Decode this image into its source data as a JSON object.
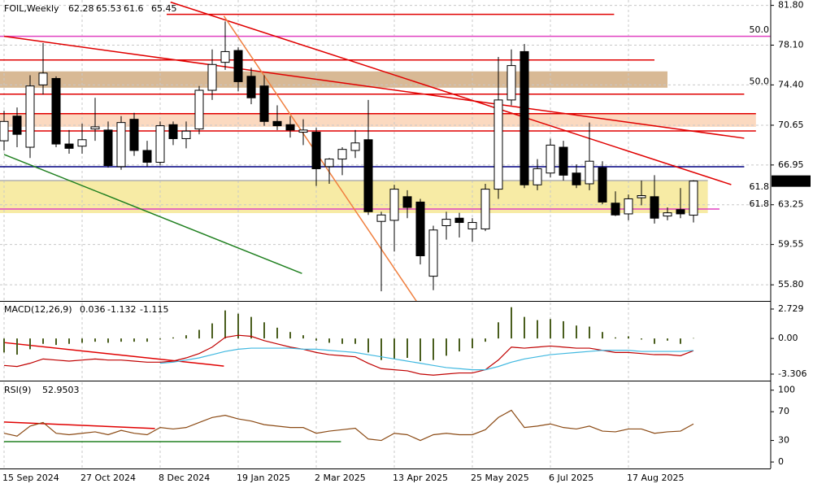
{
  "chart_data": [
    {
      "type": "candlestick",
      "title": "FOIL,Weekly",
      "categories": [
        "15 Sep 2024",
        null,
        null,
        null,
        null,
        null,
        "27 Oct 2024",
        null,
        null,
        null,
        null,
        null,
        "8 Dec 2024",
        null,
        null,
        null,
        null,
        null,
        "19 Jan 2025",
        null,
        null,
        null,
        null,
        null,
        "2 Mar 2025",
        null,
        null,
        null,
        null,
        null,
        "13 Apr 2025",
        null,
        null,
        null,
        null,
        null,
        "25 May 2025",
        null,
        null,
        null,
        null,
        null,
        "6 Jul 2025",
        null,
        null,
        null,
        null,
        null,
        "17 Aug 2025",
        null,
        null,
        null,
        null,
        null
      ],
      "open": [
        69.2,
        71.5,
        68.6,
        74.4,
        75.0,
        68.9,
        68.7,
        70.3,
        70.2,
        66.8,
        71.2,
        68.3,
        67.2,
        70.7,
        69.4,
        70.3,
        73.9,
        76.5,
        77.6,
        75.2,
        74.3,
        71.0,
        70.7,
        70.0,
        70.0,
        66.8,
        67.5,
        68.3,
        69.3,
        61.7,
        61.8,
        64.0,
        63.5,
        56.6,
        61.3,
        62.0,
        61.0,
        61.0,
        64.7,
        73.0,
        77.5,
        65.1,
        66.2,
        68.6,
        66.2,
        65.2,
        66.7,
        63.4,
        62.4,
        63.9,
        64.0,
        62.2,
        62.8,
        62.28
      ],
      "high": [
        72.0,
        72.3,
        75.3,
        78.3,
        75.2,
        70.2,
        70.8,
        73.2,
        71.0,
        71.5,
        71.8,
        69.2,
        71.0,
        71.0,
        71.0,
        74.3,
        77.7,
        80.3,
        77.9,
        76.0,
        75.3,
        72.5,
        71.5,
        71.2,
        70.4,
        67.6,
        68.6,
        70.2,
        73.0,
        62.6,
        65.1,
        64.6,
        63.8,
        61.3,
        62.6,
        62.5,
        62.0,
        65.2,
        77.0,
        77.7,
        78.2,
        67.5,
        69.4,
        69.2,
        67.0,
        70.9,
        67.3,
        64.5,
        64.2,
        65.5,
        66.0,
        63.0,
        64.8,
        65.53
      ],
      "low": [
        68.3,
        68.6,
        67.6,
        73.5,
        68.6,
        68.0,
        68.0,
        69.2,
        66.7,
        66.5,
        67.8,
        66.8,
        66.9,
        68.8,
        68.5,
        69.8,
        73.0,
        75.8,
        73.8,
        72.6,
        70.6,
        70.2,
        69.5,
        68.8,
        65.0,
        65.2,
        66.0,
        67.6,
        62.3,
        55.2,
        58.9,
        62.0,
        57.7,
        55.3,
        60.0,
        60.2,
        59.8,
        60.8,
        63.8,
        72.5,
        64.8,
        64.6,
        65.8,
        65.5,
        64.8,
        64.6,
        63.3,
        62.2,
        61.8,
        63.2,
        61.5,
        61.8,
        62.0,
        61.6
      ],
      "close": [
        71.0,
        69.8,
        74.3,
        75.5,
        68.9,
        68.5,
        69.3,
        70.5,
        66.9,
        70.9,
        68.3,
        67.2,
        70.6,
        69.4,
        70.1,
        73.9,
        76.3,
        77.5,
        74.7,
        73.2,
        71.0,
        70.6,
        70.2,
        70.2,
        66.6,
        67.5,
        68.4,
        69.0,
        62.6,
        62.3,
        64.7,
        63.0,
        58.5,
        60.9,
        61.9,
        61.6,
        61.6,
        64.7,
        73.0,
        76.2,
        65.1,
        66.6,
        68.8,
        66.0,
        65.1,
        67.3,
        63.5,
        62.3,
        63.8,
        64.1,
        62.0,
        62.5,
        62.4,
        65.45
      ],
      "up_color": "#ffffff",
      "down_color": "#000000",
      "ylim": [
        54.3,
        82.3
      ],
      "yticks": [
        {
          "value": 81.8,
          "label": "81.80"
        },
        {
          "value": 78.1,
          "label": "78.10"
        },
        {
          "value": 74.4,
          "label": "74.40"
        },
        70.65,
        66.95,
        63.25,
        59.55,
        {
          "value": 55.8,
          "label": "55.80"
        }
      ],
      "grid": true,
      "zones": [
        {
          "low": 74.14,
          "high": 75.66,
          "from": -1,
          "to": 51,
          "color": "#d8b995"
        },
        {
          "low": 70.5,
          "high": 71.72,
          "from": -1,
          "to": 57.8,
          "color": "#fbd9c0"
        },
        {
          "low": 62.47,
          "high": 65.5,
          "from": -1,
          "to": 54.1,
          "color": "#f7eba5"
        }
      ],
      "levels": [
        {
          "price": 80.97,
          "from": 12.5,
          "to": 46.9,
          "color": "#e00000"
        },
        {
          "price": 78.92,
          "from": -1,
          "to": 58.9,
          "color": "#e040c0"
        },
        {
          "price": 76.72,
          "from": -1,
          "to": 50,
          "color": "#e00000"
        },
        {
          "price": 73.54,
          "from": -1,
          "to": 56.9,
          "color": "#e00000"
        },
        {
          "price": 71.72,
          "from": -1,
          "to": 57.8,
          "color": "#e00000"
        },
        {
          "price": 70.12,
          "from": -1,
          "to": 57.8,
          "color": "#e00000"
        },
        {
          "price": 66.79,
          "from": -1,
          "to": 56.9,
          "color": "#000080"
        },
        {
          "price": 65.5,
          "from": -1,
          "to": 54.1,
          "color": "#b0b0b0"
        },
        {
          "price": 62.85,
          "from": -1,
          "to": 55,
          "color": "#e040c0"
        }
      ],
      "trendlines": [
        {
          "x": [
            0,
            56.9
          ],
          "y": [
            78.92,
            69.44
          ],
          "color": "#e00000"
        },
        {
          "x": [
            12.8,
            55.9
          ],
          "y": [
            82.1,
            65.12
          ],
          "color": "#e00000"
        },
        {
          "x": [
            16.9,
            31.7
          ],
          "y": [
            80.81,
            54.28
          ],
          "color": "#f08040"
        },
        {
          "x": [
            0,
            22.9
          ],
          "y": [
            67.93,
            56.86
          ],
          "color": "#208020"
        }
      ],
      "annotations": [
        {
          "text": "50.0",
          "price": 79.5,
          "color": "#e040c0"
        },
        {
          "text": "50.0",
          "price": 74.7,
          "color": "#a0a0a0"
        },
        {
          "text": "61.8",
          "price": 64.9,
          "color": "#a0a0a0"
        },
        {
          "text": "61.8",
          "price": 63.3,
          "color": "#e040c0"
        }
      ]
    },
    {
      "type": "macd",
      "title": "MACD(12,26,9)",
      "histogram": {
        "color": "#4a5e1e",
        "values": [
          -1.3,
          -1.5,
          -1.0,
          -0.5,
          -0.6,
          -0.5,
          -0.4,
          -0.3,
          -0.4,
          -0.3,
          -0.3,
          -0.3,
          -0.1,
          0.1,
          0.3,
          0.8,
          1.4,
          2.6,
          2.3,
          2.0,
          1.5,
          1.0,
          0.6,
          0.3,
          -0.2,
          -0.4,
          -0.5,
          -0.5,
          -1.3,
          -2.0,
          -1.9,
          -1.8,
          -2.1,
          -2.0,
          -1.6,
          -1.2,
          -0.9,
          -0.3,
          1.5,
          2.9,
          2.0,
          1.7,
          1.8,
          1.6,
          1.2,
          1.1,
          0.6,
          0.1,
          0.2,
          -0.1,
          -0.5,
          -0.2,
          -0.5,
          0.036
        ]
      },
      "series": [
        {
          "color": "#c00000",
          "values": [
            -2.5,
            -2.6,
            -2.3,
            -1.9,
            -2.0,
            -2.1,
            -2.0,
            -1.9,
            -2.0,
            -2.0,
            -2.1,
            -2.2,
            -2.2,
            -2.1,
            -1.8,
            -1.4,
            -0.8,
            0.1,
            0.3,
            0.2,
            -0.2,
            -0.5,
            -0.8,
            -1.0,
            -1.3,
            -1.5,
            -1.6,
            -1.7,
            -2.3,
            -2.8,
            -2.9,
            -3.0,
            -3.3,
            -3.4,
            -3.3,
            -3.2,
            -3.2,
            -2.9,
            -2.0,
            -0.8,
            -0.9,
            -0.8,
            -0.7,
            -0.8,
            -0.9,
            -0.9,
            -1.1,
            -1.3,
            -1.3,
            -1.4,
            -1.5,
            -1.5,
            -1.6,
            -1.132
          ]
        },
        {
          "color": "#40b8e0",
          "values": [
            null,
            null,
            null,
            null,
            null,
            null,
            null,
            null,
            null,
            null,
            null,
            null,
            -2.3,
            -2.2,
            -2.0,
            -1.8,
            -1.5,
            -1.2,
            -1.0,
            -0.9,
            -0.9,
            -0.9,
            -0.9,
            -1.0,
            -1.0,
            -1.1,
            -1.2,
            -1.3,
            -1.5,
            -1.7,
            -1.9,
            -2.1,
            -2.3,
            -2.5,
            -2.7,
            -2.8,
            -2.9,
            -2.9,
            -2.6,
            -2.2,
            -1.9,
            -1.7,
            -1.5,
            -1.4,
            -1.3,
            -1.2,
            -1.1,
            -1.1,
            -1.1,
            -1.2,
            -1.2,
            -1.2,
            -1.2,
            -1.115
          ]
        }
      ],
      "ylim": [
        -3.76,
        3.33
      ],
      "yticks": [
        2.729,
        {
          "value": 0,
          "label": "0.00"
        },
        -3.306
      ],
      "trendlines": [
        {
          "x": [
            0,
            16.9
          ],
          "y": [
            -0.38,
            -2.56
          ],
          "color": "#e00000"
        }
      ]
    },
    {
      "type": "line",
      "title": "RSI(9)",
      "series": [
        {
          "color": "#8b4a14",
          "values": [
            40,
            36,
            50,
            55,
            40,
            38,
            40,
            42,
            38,
            44,
            40,
            38,
            48,
            46,
            48,
            55,
            62,
            65,
            60,
            57,
            52,
            50,
            48,
            48,
            40,
            43,
            45,
            47,
            32,
            30,
            40,
            38,
            30,
            38,
            40,
            38,
            38,
            45,
            62,
            72,
            48,
            50,
            53,
            48,
            46,
            50,
            43,
            42,
            46,
            46,
            40,
            42,
            43,
            52.9503
          ]
        }
      ],
      "ylim": [
        -9,
        111
      ],
      "yticks": [
        100,
        70,
        30,
        0
      ],
      "trendlines": [
        {
          "x": [
            0,
            11.6
          ],
          "y": [
            55.7,
            46.6
          ],
          "color": "#e00000"
        },
        {
          "x": [
            0,
            25.9
          ],
          "y": [
            28.4,
            28.4
          ],
          "color": "#208020"
        }
      ]
    }
  ]
}
